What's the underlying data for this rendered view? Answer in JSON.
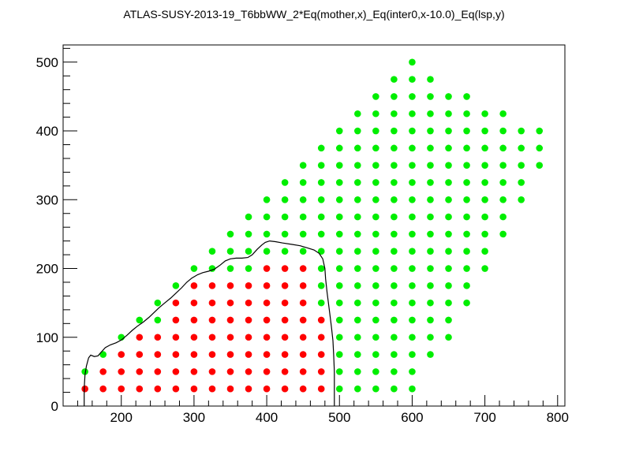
{
  "chart_data": {
    "type": "scatter",
    "title": "ATLAS-SUSY-2013-19_T6bbWW_2*Eq(mother,x)_Eq(inter0,x-10.0)_Eq(lsp,y)",
    "xlabel": "",
    "ylabel": "",
    "xlim": [
      120,
      810
    ],
    "ylim": [
      0,
      525
    ],
    "x_ticks": [
      200,
      300,
      400,
      500,
      600,
      700,
      800
    ],
    "y_ticks": [
      0,
      100,
      200,
      300,
      400,
      500
    ],
    "grid": false,
    "legend": "none",
    "colors": {
      "excluded": "#ff0000",
      "allowed": "#00ee00",
      "contour": "#000000"
    },
    "series": [
      {
        "color": "#ff0000",
        "points": [
          [
            150,
            25
          ],
          [
            175,
            25
          ],
          [
            200,
            25
          ],
          [
            225,
            25
          ],
          [
            250,
            25
          ],
          [
            275,
            25
          ],
          [
            300,
            25
          ],
          [
            325,
            25
          ],
          [
            350,
            25
          ],
          [
            375,
            25
          ],
          [
            400,
            25
          ],
          [
            425,
            25
          ],
          [
            450,
            25
          ],
          [
            475,
            25
          ],
          [
            175,
            50
          ],
          [
            200,
            50
          ],
          [
            225,
            50
          ],
          [
            250,
            50
          ],
          [
            275,
            50
          ],
          [
            300,
            50
          ],
          [
            325,
            50
          ],
          [
            350,
            50
          ],
          [
            375,
            50
          ],
          [
            400,
            50
          ],
          [
            425,
            50
          ],
          [
            450,
            50
          ],
          [
            475,
            50
          ],
          [
            200,
            75
          ],
          [
            225,
            75
          ],
          [
            250,
            75
          ],
          [
            275,
            75
          ],
          [
            300,
            75
          ],
          [
            325,
            75
          ],
          [
            350,
            75
          ],
          [
            375,
            75
          ],
          [
            400,
            75
          ],
          [
            425,
            75
          ],
          [
            450,
            75
          ],
          [
            475,
            75
          ],
          [
            225,
            100
          ],
          [
            250,
            100
          ],
          [
            275,
            100
          ],
          [
            300,
            100
          ],
          [
            325,
            100
          ],
          [
            350,
            100
          ],
          [
            375,
            100
          ],
          [
            400,
            100
          ],
          [
            425,
            100
          ],
          [
            450,
            100
          ],
          [
            475,
            100
          ],
          [
            275,
            125
          ],
          [
            300,
            125
          ],
          [
            325,
            125
          ],
          [
            350,
            125
          ],
          [
            375,
            125
          ],
          [
            400,
            125
          ],
          [
            425,
            125
          ],
          [
            450,
            125
          ],
          [
            475,
            125
          ],
          [
            275,
            150
          ],
          [
            300,
            150
          ],
          [
            325,
            150
          ],
          [
            350,
            150
          ],
          [
            375,
            150
          ],
          [
            400,
            150
          ],
          [
            425,
            150
          ],
          [
            450,
            150
          ],
          [
            300,
            175
          ],
          [
            325,
            175
          ],
          [
            350,
            175
          ],
          [
            375,
            175
          ],
          [
            400,
            175
          ],
          [
            425,
            175
          ],
          [
            450,
            175
          ],
          [
            400,
            200
          ],
          [
            425,
            200
          ],
          [
            450,
            200
          ]
        ]
      },
      {
        "color": "#00ee00",
        "points": [
          [
            500,
            25
          ],
          [
            525,
            25
          ],
          [
            550,
            25
          ],
          [
            575,
            25
          ],
          [
            600,
            25
          ],
          [
            150,
            50
          ],
          [
            500,
            50
          ],
          [
            525,
            50
          ],
          [
            550,
            50
          ],
          [
            575,
            50
          ],
          [
            600,
            50
          ],
          [
            175,
            75
          ],
          [
            500,
            75
          ],
          [
            525,
            75
          ],
          [
            550,
            75
          ],
          [
            575,
            75
          ],
          [
            600,
            75
          ],
          [
            625,
            75
          ],
          [
            200,
            100
          ],
          [
            500,
            100
          ],
          [
            525,
            100
          ],
          [
            550,
            100
          ],
          [
            575,
            100
          ],
          [
            600,
            100
          ],
          [
            625,
            100
          ],
          [
            650,
            100
          ],
          [
            225,
            125
          ],
          [
            250,
            125
          ],
          [
            500,
            125
          ],
          [
            525,
            125
          ],
          [
            550,
            125
          ],
          [
            575,
            125
          ],
          [
            600,
            125
          ],
          [
            625,
            125
          ],
          [
            650,
            125
          ],
          [
            250,
            150
          ],
          [
            475,
            150
          ],
          [
            500,
            150
          ],
          [
            525,
            150
          ],
          [
            550,
            150
          ],
          [
            575,
            150
          ],
          [
            600,
            150
          ],
          [
            625,
            150
          ],
          [
            650,
            150
          ],
          [
            675,
            150
          ],
          [
            275,
            175
          ],
          [
            475,
            175
          ],
          [
            500,
            175
          ],
          [
            525,
            175
          ],
          [
            550,
            175
          ],
          [
            575,
            175
          ],
          [
            600,
            175
          ],
          [
            625,
            175
          ],
          [
            650,
            175
          ],
          [
            675,
            175
          ],
          [
            300,
            200
          ],
          [
            325,
            200
          ],
          [
            350,
            200
          ],
          [
            375,
            200
          ],
          [
            475,
            200
          ],
          [
            500,
            200
          ],
          [
            525,
            200
          ],
          [
            550,
            200
          ],
          [
            575,
            200
          ],
          [
            600,
            200
          ],
          [
            625,
            200
          ],
          [
            650,
            200
          ],
          [
            675,
            200
          ],
          [
            700,
            200
          ],
          [
            325,
            225
          ],
          [
            350,
            225
          ],
          [
            375,
            225
          ],
          [
            400,
            225
          ],
          [
            425,
            225
          ],
          [
            450,
            225
          ],
          [
            475,
            225
          ],
          [
            500,
            225
          ],
          [
            525,
            225
          ],
          [
            550,
            225
          ],
          [
            575,
            225
          ],
          [
            600,
            225
          ],
          [
            625,
            225
          ],
          [
            650,
            225
          ],
          [
            675,
            225
          ],
          [
            700,
            225
          ],
          [
            350,
            250
          ],
          [
            375,
            250
          ],
          [
            400,
            250
          ],
          [
            425,
            250
          ],
          [
            450,
            250
          ],
          [
            475,
            250
          ],
          [
            500,
            250
          ],
          [
            525,
            250
          ],
          [
            550,
            250
          ],
          [
            575,
            250
          ],
          [
            600,
            250
          ],
          [
            625,
            250
          ],
          [
            650,
            250
          ],
          [
            675,
            250
          ],
          [
            700,
            250
          ],
          [
            725,
            250
          ],
          [
            375,
            275
          ],
          [
            400,
            275
          ],
          [
            425,
            275
          ],
          [
            450,
            275
          ],
          [
            475,
            275
          ],
          [
            500,
            275
          ],
          [
            525,
            275
          ],
          [
            550,
            275
          ],
          [
            575,
            275
          ],
          [
            600,
            275
          ],
          [
            625,
            275
          ],
          [
            650,
            275
          ],
          [
            675,
            275
          ],
          [
            700,
            275
          ],
          [
            725,
            275
          ],
          [
            400,
            300
          ],
          [
            425,
            300
          ],
          [
            450,
            300
          ],
          [
            475,
            300
          ],
          [
            500,
            300
          ],
          [
            525,
            300
          ],
          [
            550,
            300
          ],
          [
            575,
            300
          ],
          [
            600,
            300
          ],
          [
            625,
            300
          ],
          [
            650,
            300
          ],
          [
            675,
            300
          ],
          [
            700,
            300
          ],
          [
            725,
            300
          ],
          [
            750,
            300
          ],
          [
            425,
            325
          ],
          [
            450,
            325
          ],
          [
            475,
            325
          ],
          [
            500,
            325
          ],
          [
            525,
            325
          ],
          [
            550,
            325
          ],
          [
            575,
            325
          ],
          [
            600,
            325
          ],
          [
            625,
            325
          ],
          [
            650,
            325
          ],
          [
            675,
            325
          ],
          [
            700,
            325
          ],
          [
            725,
            325
          ],
          [
            750,
            325
          ],
          [
            450,
            350
          ],
          [
            475,
            350
          ],
          [
            500,
            350
          ],
          [
            525,
            350
          ],
          [
            550,
            350
          ],
          [
            575,
            350
          ],
          [
            600,
            350
          ],
          [
            625,
            350
          ],
          [
            650,
            350
          ],
          [
            675,
            350
          ],
          [
            700,
            350
          ],
          [
            725,
            350
          ],
          [
            750,
            350
          ],
          [
            775,
            350
          ],
          [
            475,
            375
          ],
          [
            500,
            375
          ],
          [
            525,
            375
          ],
          [
            550,
            375
          ],
          [
            575,
            375
          ],
          [
            600,
            375
          ],
          [
            625,
            375
          ],
          [
            650,
            375
          ],
          [
            675,
            375
          ],
          [
            700,
            375
          ],
          [
            725,
            375
          ],
          [
            750,
            375
          ],
          [
            775,
            375
          ],
          [
            500,
            400
          ],
          [
            525,
            400
          ],
          [
            550,
            400
          ],
          [
            575,
            400
          ],
          [
            600,
            400
          ],
          [
            625,
            400
          ],
          [
            650,
            400
          ],
          [
            675,
            400
          ],
          [
            700,
            400
          ],
          [
            725,
            400
          ],
          [
            750,
            400
          ],
          [
            775,
            400
          ],
          [
            525,
            425
          ],
          [
            550,
            425
          ],
          [
            575,
            425
          ],
          [
            600,
            425
          ],
          [
            625,
            425
          ],
          [
            650,
            425
          ],
          [
            675,
            425
          ],
          [
            700,
            425
          ],
          [
            725,
            425
          ],
          [
            550,
            450
          ],
          [
            575,
            450
          ],
          [
            600,
            450
          ],
          [
            625,
            450
          ],
          [
            650,
            450
          ],
          [
            675,
            450
          ],
          [
            575,
            475
          ],
          [
            600,
            475
          ],
          [
            625,
            475
          ],
          [
            600,
            500
          ]
        ]
      }
    ],
    "contour": [
      [
        149,
        0
      ],
      [
        149,
        25
      ],
      [
        150,
        45
      ],
      [
        152,
        58
      ],
      [
        155,
        70
      ],
      [
        158,
        74
      ],
      [
        163,
        72
      ],
      [
        168,
        73
      ],
      [
        172,
        78
      ],
      [
        178,
        85
      ],
      [
        185,
        89
      ],
      [
        193,
        92
      ],
      [
        200,
        96
      ],
      [
        208,
        103
      ],
      [
        215,
        110
      ],
      [
        222,
        116
      ],
      [
        230,
        122
      ],
      [
        238,
        129
      ],
      [
        245,
        136
      ],
      [
        252,
        143
      ],
      [
        260,
        150
      ],
      [
        268,
        157
      ],
      [
        275,
        164
      ],
      [
        283,
        172
      ],
      [
        290,
        180
      ],
      [
        297,
        186
      ],
      [
        305,
        191
      ],
      [
        312,
        194
      ],
      [
        320,
        196
      ],
      [
        328,
        199
      ],
      [
        336,
        205
      ],
      [
        343,
        211
      ],
      [
        350,
        214
      ],
      [
        358,
        215
      ],
      [
        366,
        215
      ],
      [
        374,
        216
      ],
      [
        380,
        220
      ],
      [
        387,
        228
      ],
      [
        393,
        234
      ],
      [
        398,
        238
      ],
      [
        404,
        240
      ],
      [
        412,
        239
      ],
      [
        422,
        237
      ],
      [
        435,
        235
      ],
      [
        446,
        233
      ],
      [
        456,
        230
      ],
      [
        465,
        227
      ],
      [
        472,
        222
      ],
      [
        477,
        214
      ],
      [
        480,
        200
      ],
      [
        481,
        185
      ],
      [
        483,
        165
      ],
      [
        486,
        140
      ],
      [
        489,
        115
      ],
      [
        491,
        95
      ],
      [
        492,
        75
      ],
      [
        493,
        50
      ],
      [
        493,
        25
      ],
      [
        493,
        0
      ]
    ]
  }
}
